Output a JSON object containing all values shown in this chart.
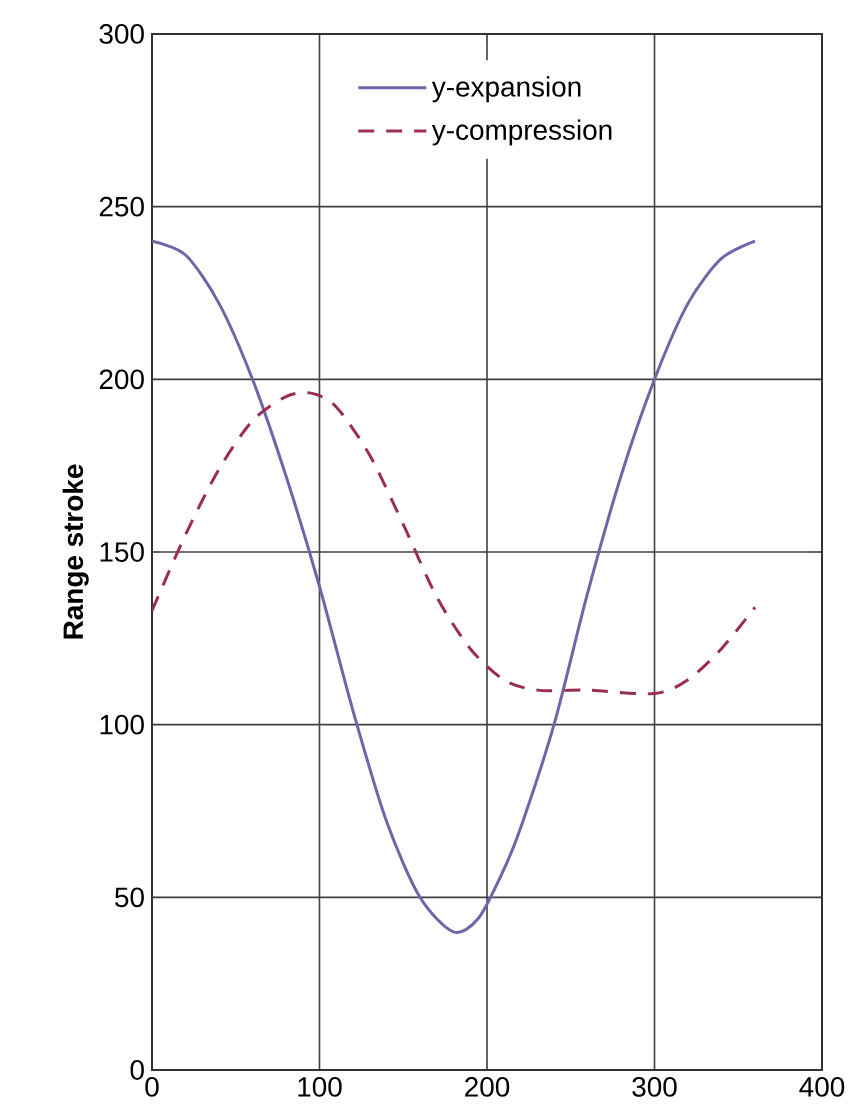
{
  "chart_data": {
    "type": "line",
    "ylabel": "Range stroke",
    "xlim": [
      0,
      400
    ],
    "ylim": [
      0,
      300
    ],
    "xticks": [
      0,
      100,
      200,
      300,
      400
    ],
    "yticks": [
      0,
      50,
      100,
      150,
      200,
      250,
      300
    ],
    "grid": true,
    "legend": "top",
    "series": [
      {
        "name": "y-expansion",
        "color": "#6b67a8",
        "line_style": "solid",
        "x": [
          0,
          20,
          40,
          60,
          80,
          100,
          120,
          140,
          160,
          180,
          195,
          210,
          220,
          240,
          260,
          280,
          300,
          320,
          340,
          360
        ],
        "values": [
          240,
          236,
          222,
          200,
          172,
          140,
          104,
          72,
          50,
          40,
          44,
          58,
          70,
          100,
          138,
          172,
          200,
          222,
          235,
          240
        ]
      },
      {
        "name": "y-compression",
        "color": "#9b2d55",
        "line_style": "dashed",
        "x": [
          0,
          20,
          40,
          60,
          80,
          95,
          110,
          130,
          150,
          170,
          190,
          210,
          230,
          260,
          300,
          320,
          340,
          360
        ],
        "values": [
          133,
          155,
          174,
          188,
          195,
          196,
          192,
          178,
          158,
          137,
          122,
          113,
          110,
          110,
          109,
          113,
          122,
          134
        ]
      }
    ]
  }
}
